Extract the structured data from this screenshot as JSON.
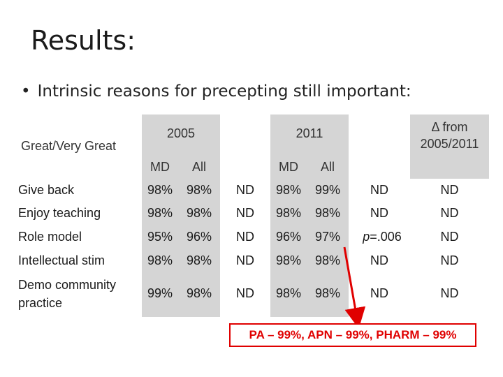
{
  "slide": {
    "title": "Results:",
    "bullet": "Intrinsic reasons for precepting still important:",
    "bullet_marker": "•"
  },
  "table": {
    "corner_label": "Great/Very Great",
    "group_2005": "2005",
    "group_2011": "2011",
    "delta_header_line1": "Δ from",
    "delta_header_line2": "2005/2011",
    "sub_md": "MD",
    "sub_all": "All",
    "rows": [
      {
        "label": "Give back",
        "md2005": "98%",
        "all2005": "98%",
        "sig2005": "ND",
        "md2011": "98%",
        "all2011": "99%",
        "sig2011": "ND",
        "delta": "ND"
      },
      {
        "label": "Enjoy teaching",
        "md2005": "98%",
        "all2005": "98%",
        "sig2005": "ND",
        "md2011": "98%",
        "all2011": "98%",
        "sig2011": "ND",
        "delta": "ND"
      },
      {
        "label": "Role model",
        "md2005": "95%",
        "all2005": "96%",
        "sig2005": "ND",
        "md2011": "96%",
        "all2011": "97%",
        "sig2011_p": "p",
        "sig2011_rest": "=.006",
        "delta": "ND"
      },
      {
        "label": "Intellectual stim",
        "md2005": "98%",
        "all2005": "98%",
        "sig2005": "ND",
        "md2011": "98%",
        "all2011": "98%",
        "sig2011": "ND",
        "delta": "ND"
      },
      {
        "label_line1": "Demo community",
        "label_line2": "practice",
        "md2005": "99%",
        "all2005": "98%",
        "sig2005": "ND",
        "md2011": "98%",
        "all2011": "98%",
        "sig2011": "ND",
        "delta": "ND"
      }
    ]
  },
  "callout": {
    "text": "PA – 99%, APN – 99%, PHARM – 99%",
    "color": "#e00000"
  },
  "colors": {
    "shade": "#d5d5d5",
    "accent": "#e00000"
  }
}
